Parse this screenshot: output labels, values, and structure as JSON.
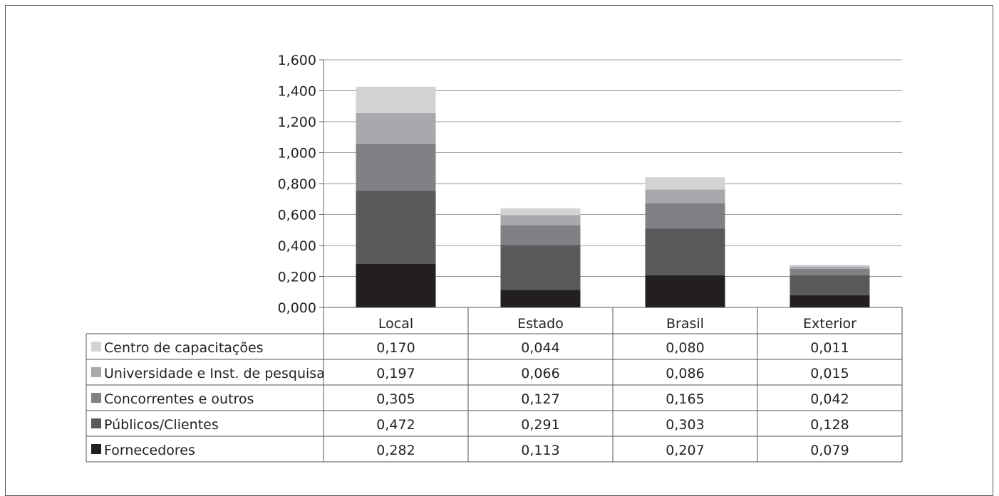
{
  "chart_data": {
    "type": "bar",
    "stacked": true,
    "categories": [
      "Local",
      "Estado",
      "Brasil",
      "Exterior"
    ],
    "ylim": [
      0,
      1.6
    ],
    "yticks": [
      "0,000",
      "0,200",
      "0,400",
      "0,600",
      "0,800",
      "1,000",
      "1,200",
      "1,400",
      "1,600"
    ],
    "gridlines": true,
    "legend": "data-table-left",
    "series": [
      {
        "name": "Fornecedores",
        "color": "#231f20",
        "values": [
          0.282,
          0.113,
          0.207,
          0.079
        ],
        "labels": [
          "0,282",
          "0,113",
          "0,207",
          "0,079"
        ]
      },
      {
        "name": "Públicos/Clientes",
        "color": "#58595b",
        "values": [
          0.472,
          0.291,
          0.303,
          0.128
        ],
        "labels": [
          "0,472",
          "0,291",
          "0,303",
          "0,128"
        ]
      },
      {
        "name": "Concorrentes e outros",
        "color": "#808184",
        "values": [
          0.305,
          0.127,
          0.165,
          0.042
        ],
        "labels": [
          "0,305",
          "0,127",
          "0,165",
          "0,042"
        ]
      },
      {
        "name": "Universidade e Inst. de pesquisa",
        "color": "#a7a9ac",
        "values": [
          0.197,
          0.066,
          0.086,
          0.015
        ],
        "labels": [
          "0,197",
          "0,066",
          "0,086",
          "0,015"
        ]
      },
      {
        "name": "Centro de capacitações",
        "color": "#d1d3d4",
        "values": [
          0.17,
          0.044,
          0.08,
          0.011
        ],
        "labels": [
          "0,170",
          "0,044",
          "0,080",
          "0,011"
        ]
      }
    ]
  }
}
